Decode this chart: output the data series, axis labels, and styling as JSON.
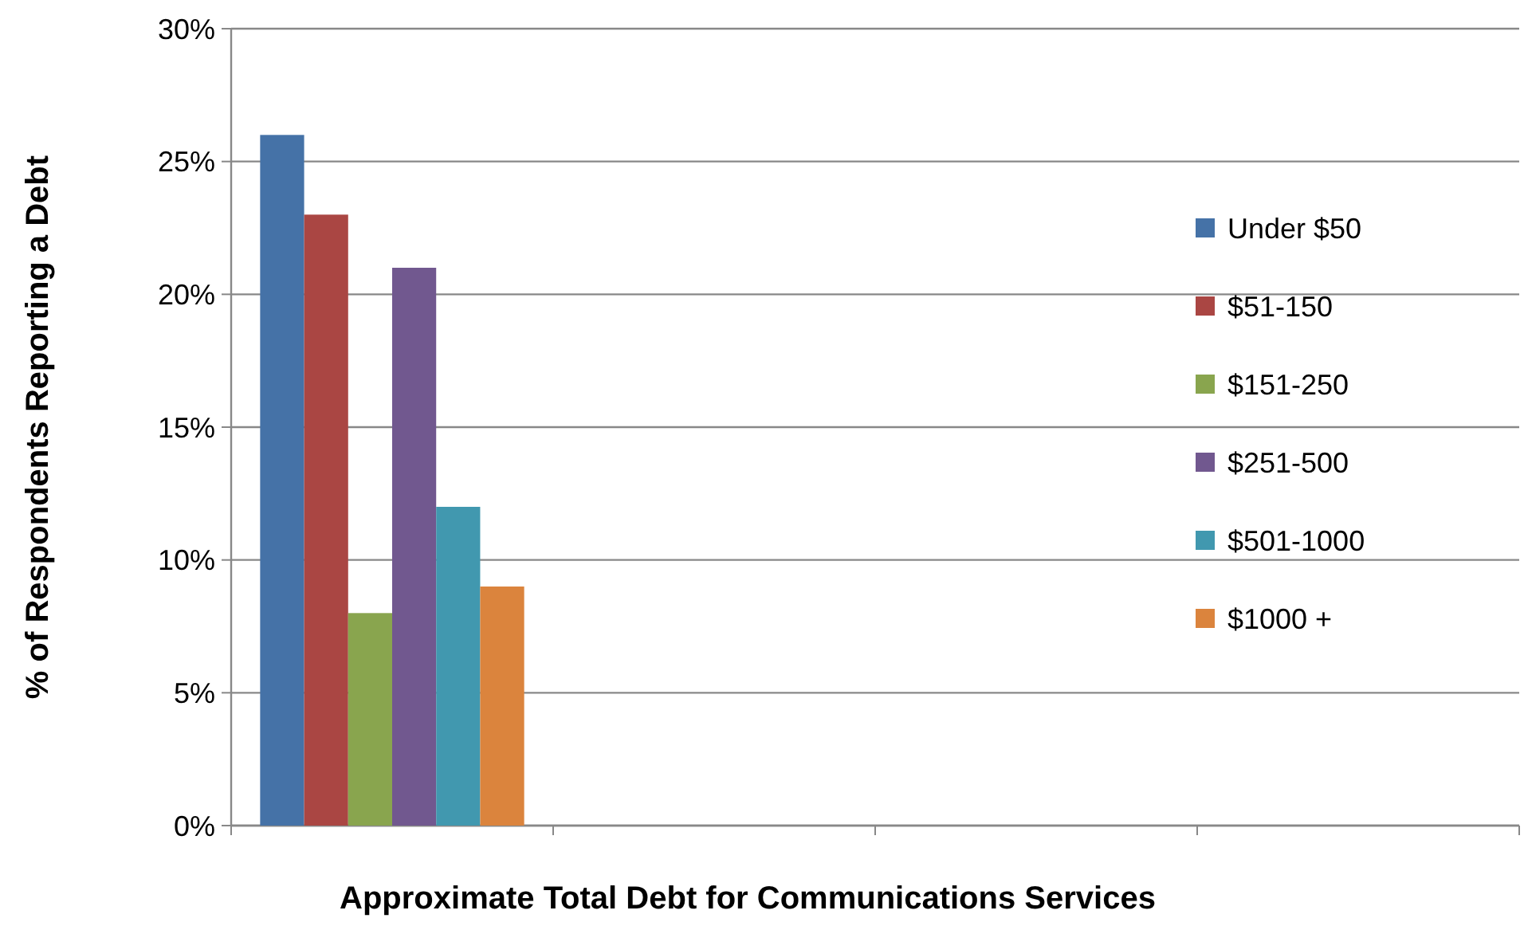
{
  "chart_data": {
    "type": "bar",
    "xlabel": "Approximate Total Debt for Communications Services",
    "ylabel": "% of Respondents Reporting a Debt",
    "categories": [
      null,
      null,
      null,
      null
    ],
    "series": [
      {
        "name": "Under $50",
        "color": "#4572a7",
        "values": [
          26,
          null,
          null,
          null
        ]
      },
      {
        "name": "$51-150",
        "color": "#aa4643",
        "values": [
          23,
          null,
          null,
          null
        ]
      },
      {
        "name": "$151-250",
        "color": "#89a54e",
        "values": [
          8,
          null,
          null,
          null
        ]
      },
      {
        "name": "$251-500",
        "color": "#71588f",
        "values": [
          21,
          null,
          null,
          null
        ]
      },
      {
        "name": "$501-1000",
        "color": "#4198af",
        "values": [
          12,
          null,
          null,
          null
        ]
      },
      {
        "name": "$1000 +",
        "color": "#db843d",
        "values": [
          9,
          null,
          null,
          null
        ]
      }
    ],
    "ylim": [
      0,
      30
    ],
    "yticks": [
      {
        "value": 0,
        "label": "0%"
      },
      {
        "value": 5,
        "label": "5%"
      },
      {
        "value": 10,
        "label": "10%"
      },
      {
        "value": 15,
        "label": "15%"
      },
      {
        "value": 20,
        "label": "20%"
      },
      {
        "value": 25,
        "label": "25%"
      },
      {
        "value": 30,
        "label": "30%"
      }
    ],
    "grid": "y",
    "legend": "right"
  }
}
